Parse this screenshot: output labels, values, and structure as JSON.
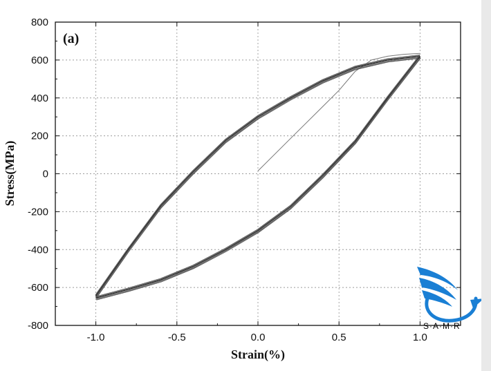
{
  "chart_data": {
    "type": "line",
    "panel_tag": "(a)",
    "xlabel": "Strain(%)",
    "ylabel": "Stress(MPa)",
    "xlim": [
      -1.25,
      1.25
    ],
    "ylim": [
      -800,
      800
    ],
    "xticks": [
      -1.0,
      -0.5,
      0.0,
      0.5,
      1.0
    ],
    "xtick_labels": [
      "-1.0",
      "-0.5",
      "0.0",
      "0.5",
      "1.0"
    ],
    "yticks": [
      -800,
      -600,
      -400,
      -200,
      0,
      200,
      400,
      600,
      800
    ],
    "ytick_labels": [
      "-800",
      "-600",
      "-400",
      "-200",
      "0",
      "200",
      "400",
      "600",
      "800"
    ],
    "grid": true,
    "series_color": "#222222",
    "series": [
      {
        "x": [
          0.0,
          0.2,
          0.4,
          0.5,
          0.6,
          0.7,
          0.8,
          0.9,
          1.0
        ],
        "y": [
          15,
          185,
          355,
          440,
          540,
          600,
          620,
          630,
          635
        ]
      },
      {
        "x": [
          1.0,
          0.8,
          0.6,
          0.4,
          0.2,
          0.0,
          -0.2,
          -0.4,
          -0.6,
          -0.8,
          -1.0
        ],
        "y": [
          620,
          600,
          560,
          490,
          400,
          300,
          175,
          10,
          -170,
          -400,
          -645
        ]
      },
      {
        "x": [
          -1.0,
          -0.8,
          -0.6,
          -0.4,
          -0.2,
          0.0,
          0.2,
          0.4,
          0.6,
          0.8,
          1.0
        ],
        "y": [
          -655,
          -610,
          -560,
          -490,
          -400,
          -300,
          -175,
          -10,
          170,
          400,
          620
        ]
      }
    ]
  },
  "logo": {
    "text": "S·A·M·R",
    "color": "#1a7fd4"
  }
}
